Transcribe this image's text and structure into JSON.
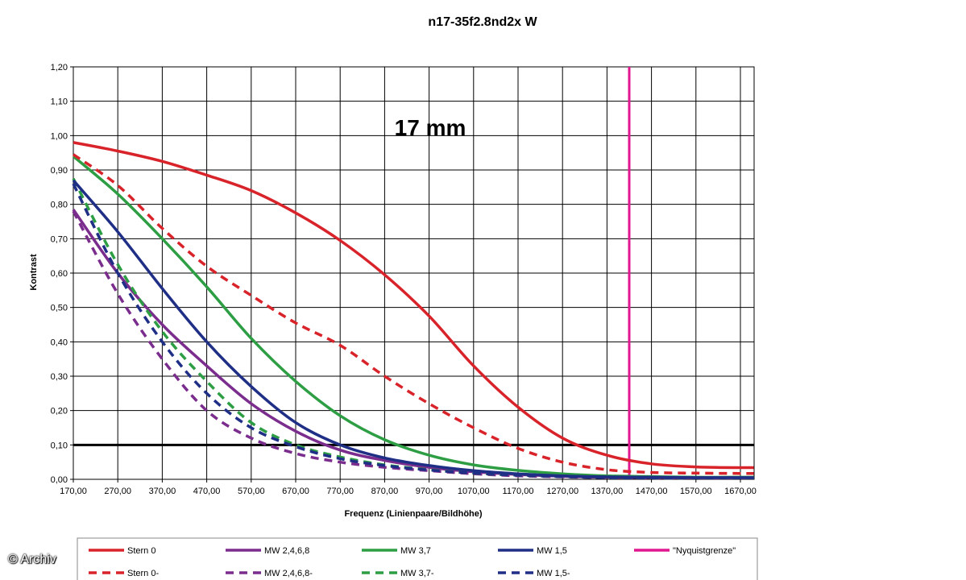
{
  "credit": "© Archiv",
  "chart_data": {
    "type": "line",
    "title": "n17-35f2.8nd2x W",
    "annotation": "17 mm",
    "xlabel": "Frequenz (Linienpaare/Bildhöhe)",
    "ylabel": "Kontrast",
    "xlim": [
      170,
      1700
    ],
    "ylim": [
      0,
      1.2
    ],
    "x_ticks": [
      "170,00",
      "270,00",
      "370,00",
      "470,00",
      "570,00",
      "670,00",
      "770,00",
      "870,00",
      "970,00",
      "1070,00",
      "1170,00",
      "1270,00",
      "1370,00",
      "1470,00",
      "1570,00",
      "1670,00"
    ],
    "y_ticks": [
      "0,00",
      "0,10",
      "0,20",
      "0,30",
      "0,40",
      "0,50",
      "0,60",
      "0,70",
      "0,80",
      "0,90",
      "1,00",
      "1,10",
      "1,20"
    ],
    "grid": true,
    "legend_position": "bottom",
    "reference_lines": [
      {
        "orientation": "horizontal",
        "y": 0.1,
        "color": "#000000"
      },
      {
        "orientation": "vertical",
        "name": "\"Nyquistgrenze\"",
        "x": 1420,
        "color": "#e0178f"
      }
    ],
    "series": [
      {
        "name": "Stern 0",
        "color": "#d9232a",
        "dash": false,
        "x": [
          170,
          270,
          370,
          470,
          570,
          670,
          770,
          870,
          970,
          1070,
          1170,
          1270,
          1370,
          1470,
          1570,
          1670,
          1700
        ],
        "y": [
          0.98,
          0.955,
          0.925,
          0.885,
          0.84,
          0.775,
          0.695,
          0.595,
          0.475,
          0.33,
          0.21,
          0.12,
          0.07,
          0.045,
          0.036,
          0.034,
          0.034
        ]
      },
      {
        "name": "Stern 0-",
        "color": "#d9232a",
        "dash": true,
        "x": [
          170,
          270,
          370,
          470,
          570,
          670,
          770,
          870,
          970,
          1070,
          1170,
          1270,
          1370,
          1470,
          1570,
          1670,
          1700
        ],
        "y": [
          0.945,
          0.855,
          0.73,
          0.62,
          0.535,
          0.455,
          0.39,
          0.3,
          0.22,
          0.15,
          0.09,
          0.05,
          0.028,
          0.02,
          0.018,
          0.017,
          0.017
        ]
      },
      {
        "name": "MW 2,4,6,8",
        "color": "#7b2d8e",
        "dash": false,
        "x": [
          170,
          270,
          370,
          470,
          570,
          670,
          770,
          870,
          970,
          1070,
          1170,
          1270,
          1370,
          1470,
          1570,
          1670,
          1700
        ],
        "y": [
          0.785,
          0.6,
          0.45,
          0.33,
          0.22,
          0.14,
          0.085,
          0.055,
          0.035,
          0.022,
          0.014,
          0.009,
          0.006,
          0.005,
          0.004,
          0.004,
          0.004
        ]
      },
      {
        "name": "MW 2,4,6,8-",
        "color": "#7b2d8e",
        "dash": true,
        "x": [
          170,
          270,
          370,
          470,
          570,
          670,
          770,
          870,
          970,
          1070,
          1170,
          1270,
          1370,
          1470,
          1570,
          1670,
          1700
        ],
        "y": [
          0.78,
          0.54,
          0.35,
          0.2,
          0.12,
          0.075,
          0.05,
          0.035,
          0.025,
          0.016,
          0.01,
          0.007,
          0.005,
          0.004,
          0.004,
          0.004,
          0.004
        ]
      },
      {
        "name": "MW 3,7",
        "color": "#2e9e44",
        "dash": false,
        "x": [
          170,
          270,
          370,
          470,
          570,
          670,
          770,
          870,
          970,
          1070,
          1170,
          1270,
          1370,
          1470,
          1570,
          1670,
          1700
        ],
        "y": [
          0.94,
          0.83,
          0.7,
          0.56,
          0.41,
          0.285,
          0.185,
          0.115,
          0.07,
          0.042,
          0.026,
          0.016,
          0.01,
          0.008,
          0.006,
          0.006,
          0.006
        ]
      },
      {
        "name": "MW 3,7-",
        "color": "#2e9e44",
        "dash": true,
        "x": [
          170,
          270,
          370,
          470,
          570,
          670,
          770,
          870,
          970,
          1070,
          1170,
          1270,
          1370,
          1470,
          1570,
          1670,
          1700
        ],
        "y": [
          0.875,
          0.625,
          0.43,
          0.285,
          0.165,
          0.1,
          0.065,
          0.042,
          0.028,
          0.018,
          0.012,
          0.008,
          0.005,
          0.004,
          0.004,
          0.004,
          0.004
        ]
      },
      {
        "name": "MW 1,5",
        "color": "#1f2f86",
        "dash": false,
        "x": [
          170,
          270,
          370,
          470,
          570,
          670,
          770,
          870,
          970,
          1070,
          1170,
          1270,
          1370,
          1470,
          1570,
          1670,
          1700
        ],
        "y": [
          0.87,
          0.72,
          0.555,
          0.4,
          0.27,
          0.165,
          0.1,
          0.062,
          0.04,
          0.025,
          0.016,
          0.01,
          0.007,
          0.006,
          0.005,
          0.005,
          0.005
        ]
      },
      {
        "name": "MW 1,5-",
        "color": "#1f2f86",
        "dash": true,
        "x": [
          170,
          270,
          370,
          470,
          570,
          670,
          770,
          870,
          970,
          1070,
          1170,
          1270,
          1370,
          1470,
          1570,
          1670,
          1700
        ],
        "y": [
          0.86,
          0.6,
          0.4,
          0.25,
          0.15,
          0.095,
          0.06,
          0.04,
          0.027,
          0.018,
          0.012,
          0.008,
          0.005,
          0.004,
          0.004,
          0.004,
          0.004
        ]
      }
    ],
    "legend": [
      {
        "label": "Stern 0",
        "color": "#d9232a",
        "dash": false
      },
      {
        "label": "MW 2,4,6,8",
        "color": "#7b2d8e",
        "dash": false
      },
      {
        "label": "MW 3,7",
        "color": "#2e9e44",
        "dash": false
      },
      {
        "label": "MW 1,5",
        "color": "#1f2f86",
        "dash": false
      },
      {
        "label": "\"Nyquistgrenze\"",
        "color": "#e0178f",
        "dash": false
      },
      {
        "label": "Stern 0-",
        "color": "#d9232a",
        "dash": true
      },
      {
        "label": "MW 2,4,6,8-",
        "color": "#7b2d8e",
        "dash": true
      },
      {
        "label": "MW 3,7-",
        "color": "#2e9e44",
        "dash": true
      },
      {
        "label": "MW 1,5-",
        "color": "#1f2f86",
        "dash": true
      }
    ]
  }
}
